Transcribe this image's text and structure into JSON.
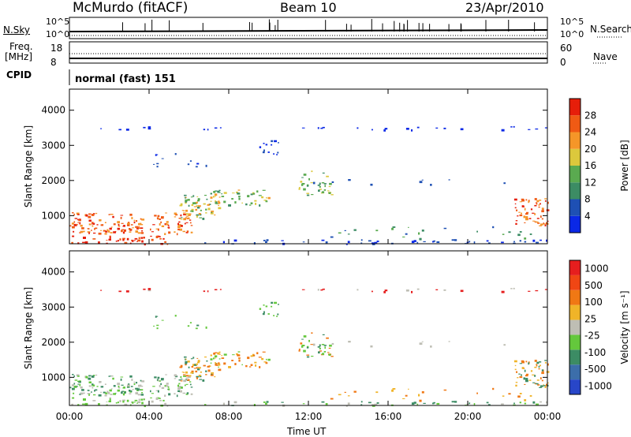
{
  "header": {
    "station": "McMurdo (fitACF)",
    "beam": "Beam 10",
    "date": "23/Apr/2010"
  },
  "strip_labels": {
    "nsky": "N.Sky",
    "nsky_hi": "10^5",
    "nsky_lo": "10^0",
    "nsearch": "N.Search",
    "nsearch_hi": "10^5",
    "nsearch_lo": "10^0",
    "freq": "Freq.",
    "freq_unit": "[MHz]",
    "freq_hi": "18",
    "freq_lo": "8",
    "nave": "Nave",
    "nave_hi": "60",
    "nave_lo": "0",
    "cpid": "CPID",
    "mode": "normal (fast) 151"
  },
  "chart_data": [
    {
      "type": "heatmap",
      "title": "",
      "xlabel": "Time UT",
      "ylabel": "Slant Range [km]",
      "x_ticks": [
        "00:00",
        "04:00",
        "08:00",
        "12:00",
        "16:00",
        "20:00",
        "00:00"
      ],
      "y_ticks": [
        "1000",
        "2000",
        "3000",
        "4000"
      ],
      "y_range": [
        200,
        4600
      ],
      "colorbar": {
        "label": "Power [dB]",
        "ticks": [
          "4",
          "8",
          "12",
          "16",
          "20",
          "24",
          "28"
        ],
        "colors": [
          "#0a28e6",
          "#1e50b4",
          "#3c8c64",
          "#5aaa50",
          "#dcc83c",
          "#f59628",
          "#f05a14",
          "#e61e0a"
        ]
      }
    },
    {
      "type": "heatmap",
      "title": "",
      "xlabel": "Time UT",
      "ylabel": "Slant Range [km]",
      "x_ticks": [
        "00:00",
        "04:00",
        "08:00",
        "12:00",
        "16:00",
        "20:00",
        "00:00"
      ],
      "y_ticks": [
        "1000",
        "2000",
        "3000",
        "4000"
      ],
      "y_range": [
        200,
        4600
      ],
      "colorbar": {
        "label": "Velocity [m s⁻¹]",
        "ticks": [
          "1000",
          "500",
          "100",
          "25",
          "-25",
          "-100",
          "-500",
          "-1000"
        ],
        "colors": [
          "#2846c8",
          "#3c6eaa",
          "#3c8c64",
          "#64c83c",
          "#bebeb4",
          "#f0b428",
          "#f07814",
          "#f04614",
          "#e61e1e"
        ]
      }
    }
  ],
  "xlabel_main": "Time UT"
}
